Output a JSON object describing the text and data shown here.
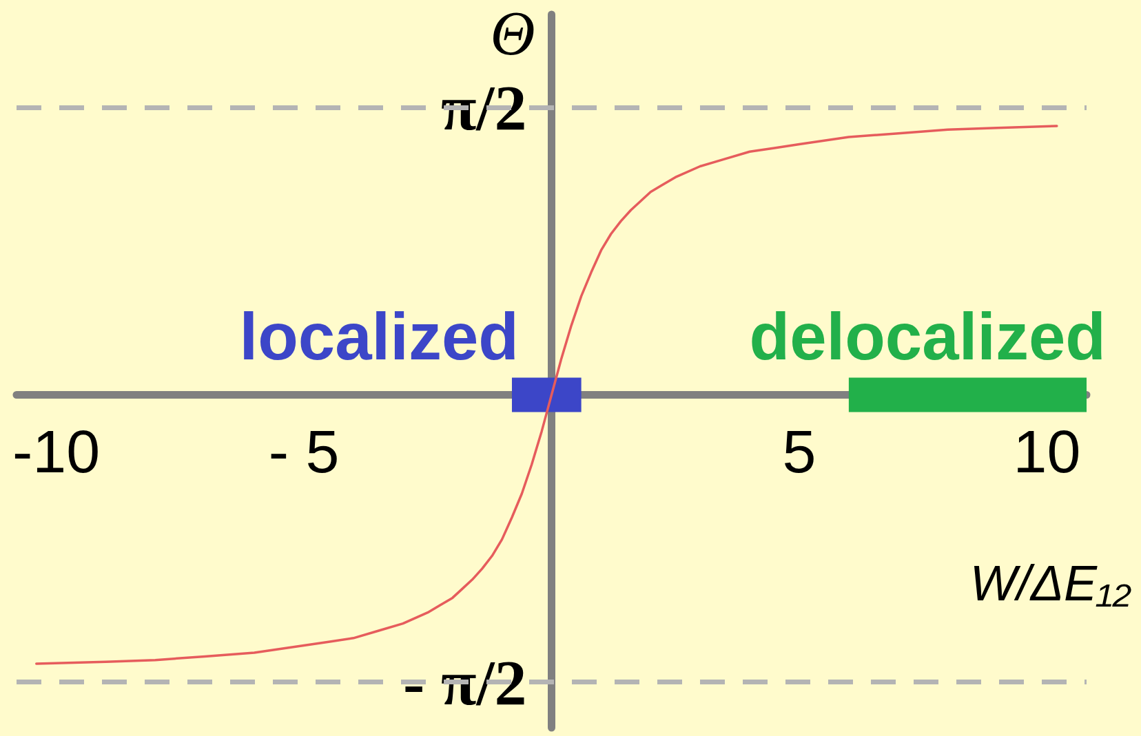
{
  "chart_data": {
    "type": "line",
    "xlabel": "W/ΔE₁₂",
    "ylabel": "Θ",
    "x": [
      -10.4,
      -9,
      -8,
      -7,
      -6,
      -5,
      -4.5,
      -4,
      -3.5,
      -3,
      -2.5,
      -2.25,
      -2,
      -1.8,
      -1.6,
      -1.4,
      -1.2,
      -1,
      -0.8,
      -0.6,
      -0.5,
      -0.4,
      -0.3,
      -0.2,
      -0.1,
      0,
      0.1,
      0.2,
      0.3,
      0.4,
      0.5,
      0.6,
      0.8,
      1,
      1.2,
      1.4,
      1.6,
      1.8,
      2,
      2.25,
      2.5,
      3,
      3.5,
      4,
      4.5,
      5,
      6,
      7,
      8,
      9,
      10.2
    ],
    "series": [
      {
        "color": "#e65c5c",
        "values": [
          -1.47,
          -1.46,
          -1.45,
          -1.43,
          -1.41,
          -1.37,
          -1.35,
          -1.33,
          -1.29,
          -1.25,
          -1.19,
          -1.15,
          -1.11,
          -1.06,
          -1.01,
          -0.95,
          -0.88,
          -0.79,
          -0.67,
          -0.54,
          -0.46,
          -0.38,
          -0.29,
          -0.2,
          -0.1,
          0,
          0.1,
          0.2,
          0.29,
          0.38,
          0.46,
          0.54,
          0.67,
          0.79,
          0.88,
          0.95,
          1.01,
          1.06,
          1.11,
          1.15,
          1.19,
          1.25,
          1.29,
          1.33,
          1.35,
          1.37,
          1.41,
          1.43,
          1.45,
          1.46,
          1.47
        ]
      }
    ],
    "xlim": [
      -10.8,
      10.8
    ],
    "xticks": [
      -10,
      {
        "value": -5,
        "label": "- 5"
      },
      5,
      10
    ],
    "ylim": [
      -1.82,
      2.08
    ],
    "yticks": [
      {
        "value": 1.5708,
        "label": "π/2"
      },
      {
        "value": -1.5708,
        "label": "- π/2"
      }
    ],
    "ref_lines": [
      {
        "axis": "y",
        "value": 1.5708,
        "color": "#b4b4b4",
        "line_style": "dashed"
      },
      {
        "axis": "y",
        "value": -1.5708,
        "color": "#b4b4b4",
        "line_style": "dashed"
      }
    ],
    "bands": [
      {
        "axis": "x",
        "from": -0.8,
        "to": 0.6,
        "label": "localized",
        "color": "#3c46c8"
      },
      {
        "axis": "x",
        "from": 6,
        "to": 10.8,
        "label": "delocalized",
        "color": "#22b04a"
      }
    ],
    "line_style": "solid"
  }
}
